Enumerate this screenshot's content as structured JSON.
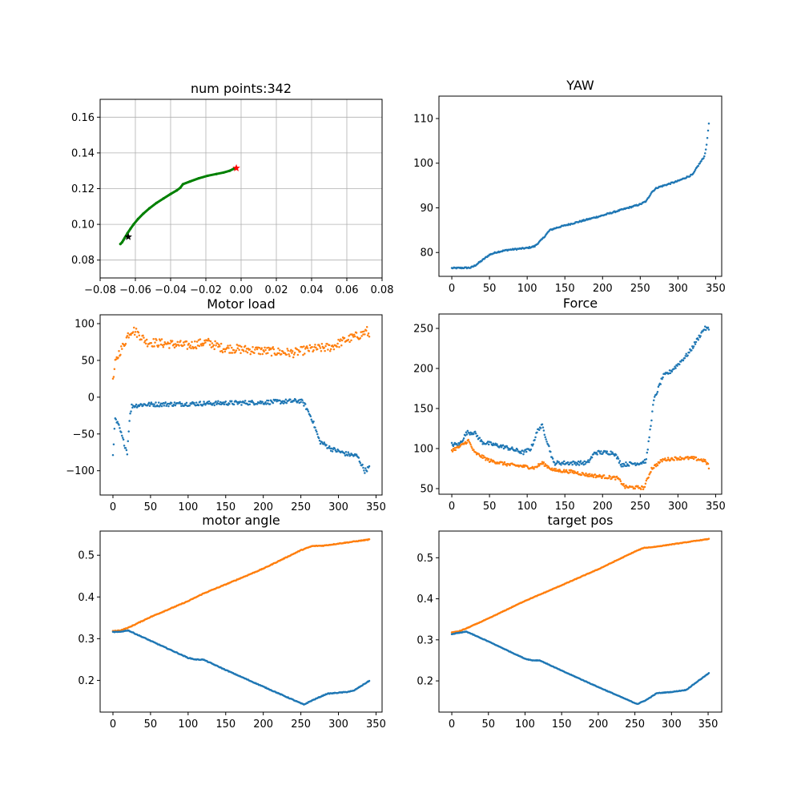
{
  "figure": {
    "background": "#ffffff"
  },
  "colors": {
    "blue": "#1f77b4",
    "orange": "#ff7f0e",
    "green": "#008000",
    "red": "#ff0000",
    "black": "#000000",
    "grid": "#b0b0b0"
  },
  "chart_data": [
    {
      "id": "trajectory",
      "type": "scatter",
      "title": "num points:342",
      "xlabel": "",
      "ylabel": "",
      "xlim": [
        -0.08,
        0.08
      ],
      "ylim": [
        0.07,
        0.17
      ],
      "xticks": [
        -0.08,
        -0.06,
        -0.04,
        -0.02,
        0.0,
        0.02,
        0.04,
        0.06,
        0.08
      ],
      "xtick_labels": [
        "−0.08",
        "−0.06",
        "−0.04",
        "−0.02",
        "0.00",
        "0.02",
        "0.04",
        "0.06",
        "0.08"
      ],
      "yticks": [
        0.08,
        0.1,
        0.12,
        0.14,
        0.16
      ],
      "ytick_labels": [
        "0.08",
        "0.10",
        "0.12",
        "0.14",
        "0.16"
      ],
      "grid": true,
      "path": {
        "color": "green",
        "points": [
          [
            -0.0685,
            0.089
          ],
          [
            -0.0675,
            0.09
          ],
          [
            -0.0668,
            0.0912
          ],
          [
            -0.066,
            0.0925
          ],
          [
            -0.0645,
            0.095
          ],
          [
            -0.0628,
            0.0975
          ],
          [
            -0.061,
            0.1
          ],
          [
            -0.0585,
            0.103
          ],
          [
            -0.0555,
            0.106
          ],
          [
            -0.052,
            0.109
          ],
          [
            -0.048,
            0.112
          ],
          [
            -0.044,
            0.1145
          ],
          [
            -0.04,
            0.117
          ],
          [
            -0.0365,
            0.119
          ],
          [
            -0.0345,
            0.1205
          ],
          [
            -0.033,
            0.1225
          ],
          [
            -0.029,
            0.124
          ],
          [
            -0.024,
            0.1258
          ],
          [
            -0.019,
            0.1272
          ],
          [
            -0.014,
            0.1282
          ],
          [
            -0.01,
            0.129
          ],
          [
            -0.0065,
            0.13
          ],
          [
            -0.004,
            0.1312
          ],
          [
            -0.003,
            0.1315
          ]
        ]
      },
      "markers": [
        {
          "name": "start",
          "x": -0.064,
          "y": 0.093,
          "color": "black",
          "shape": "star"
        },
        {
          "name": "end",
          "x": -0.0027,
          "y": 0.1315,
          "color": "red",
          "shape": "star"
        }
      ]
    },
    {
      "id": "yaw",
      "type": "scatter",
      "title": "YAW",
      "xlabel": "",
      "ylabel": "",
      "xlim": [
        -17.05,
        358.05
      ],
      "ylim": [
        74.66,
        115.02
      ],
      "xticks": [
        0,
        50,
        100,
        150,
        200,
        250,
        300,
        350
      ],
      "yticks": [
        80,
        90,
        100,
        110
      ],
      "grid": false,
      "series": [
        {
          "color": "blue",
          "count": 342,
          "noise": 0.15,
          "knots": [
            [
              0,
              76.5
            ],
            [
              25,
              76.6
            ],
            [
              30,
              77.0
            ],
            [
              40,
              78.2
            ],
            [
              50,
              79.5
            ],
            [
              60,
              80.1
            ],
            [
              75,
              80.6
            ],
            [
              100,
              81.0
            ],
            [
              110,
              81.4
            ],
            [
              120,
              83.0
            ],
            [
              130,
              85.0
            ],
            [
              140,
              85.6
            ],
            [
              160,
              86.5
            ],
            [
              200,
              88.3
            ],
            [
              230,
              89.8
            ],
            [
              250,
              90.8
            ],
            [
              258,
              91.5
            ],
            [
              265,
              93.5
            ],
            [
              272,
              94.5
            ],
            [
              300,
              96.0
            ],
            [
              320,
              97.5
            ],
            [
              325,
              99.0
            ],
            [
              335,
              101.5
            ],
            [
              338,
              104.0
            ],
            [
              341,
              109.0
            ],
            [
              342,
              113.2
            ]
          ]
        }
      ]
    },
    {
      "id": "motor_load",
      "type": "scatter",
      "title": "Motor load",
      "xlabel": "",
      "ylabel": "",
      "xlim": [
        -17.05,
        358.05
      ],
      "ylim": [
        -133,
        112
      ],
      "xticks": [
        0,
        50,
        100,
        150,
        200,
        250,
        300,
        350
      ],
      "yticks": [
        -100,
        -50,
        0,
        50,
        100
      ],
      "grid": false,
      "series": [
        {
          "color": "orange",
          "count": 342,
          "noise": 6,
          "knots": [
            [
              0,
              20
            ],
            [
              3,
              45
            ],
            [
              8,
              60
            ],
            [
              14,
              70
            ],
            [
              20,
              85
            ],
            [
              26,
              92
            ],
            [
              35,
              85
            ],
            [
              45,
              75
            ],
            [
              80,
              72
            ],
            [
              100,
              70
            ],
            [
              125,
              75
            ],
            [
              145,
              67
            ],
            [
              200,
              63
            ],
            [
              240,
              60
            ],
            [
              260,
              65
            ],
            [
              290,
              68
            ],
            [
              310,
              78
            ],
            [
              330,
              85
            ],
            [
              338,
              90
            ],
            [
              342,
              80
            ]
          ]
        },
        {
          "color": "blue",
          "count": 342,
          "noise": 3,
          "knots": [
            [
              0,
              -77
            ],
            [
              3,
              -30
            ],
            [
              8,
              -40
            ],
            [
              14,
              -60
            ],
            [
              19,
              -75
            ],
            [
              22,
              -30
            ],
            [
              25,
              -12
            ],
            [
              40,
              -10
            ],
            [
              100,
              -9
            ],
            [
              150,
              -8
            ],
            [
              200,
              -7
            ],
            [
              250,
              -5
            ],
            [
              255,
              -10
            ],
            [
              265,
              -30
            ],
            [
              275,
              -60
            ],
            [
              290,
              -70
            ],
            [
              310,
              -77
            ],
            [
              325,
              -80
            ],
            [
              335,
              -100
            ],
            [
              342,
              -95
            ]
          ]
        }
      ]
    },
    {
      "id": "force",
      "type": "scatter",
      "title": "Force",
      "xlabel": "",
      "ylabel": "",
      "xlim": [
        -17.05,
        358.05
      ],
      "ylim": [
        43,
        268
      ],
      "xticks": [
        0,
        50,
        100,
        150,
        200,
        250,
        300,
        350
      ],
      "yticks": [
        50,
        100,
        150,
        200,
        250
      ],
      "grid": false,
      "series": [
        {
          "color": "blue",
          "count": 342,
          "noise": 2.5,
          "knots": [
            [
              0,
              105
            ],
            [
              10,
              105
            ],
            [
              20,
              120
            ],
            [
              30,
              120
            ],
            [
              40,
              108
            ],
            [
              70,
              102
            ],
            [
              95,
              95
            ],
            [
              105,
              100
            ],
            [
              115,
              125
            ],
            [
              120,
              128
            ],
            [
              128,
              105
            ],
            [
              135,
              82
            ],
            [
              180,
              82
            ],
            [
              190,
              95
            ],
            [
              215,
              95
            ],
            [
              225,
              80
            ],
            [
              250,
              82
            ],
            [
              258,
              85
            ],
            [
              268,
              160
            ],
            [
              280,
              190
            ],
            [
              290,
              196
            ],
            [
              300,
              205
            ],
            [
              315,
              220
            ],
            [
              325,
              235
            ],
            [
              335,
              250
            ],
            [
              342,
              249
            ]
          ]
        },
        {
          "color": "orange",
          "count": 342,
          "noise": 2,
          "knots": [
            [
              0,
              98
            ],
            [
              10,
              102
            ],
            [
              22,
              110
            ],
            [
              30,
              95
            ],
            [
              50,
              85
            ],
            [
              75,
              80
            ],
            [
              110,
              76
            ],
            [
              120,
              82
            ],
            [
              135,
              73
            ],
            [
              160,
              71
            ],
            [
              180,
              67
            ],
            [
              220,
              63
            ],
            [
              230,
              52
            ],
            [
              255,
              51
            ],
            [
              265,
              75
            ],
            [
              280,
              86
            ],
            [
              300,
              88
            ],
            [
              320,
              88
            ],
            [
              335,
              85
            ],
            [
              340,
              80
            ],
            [
              342,
              72
            ]
          ]
        }
      ]
    },
    {
      "id": "motor_angle",
      "type": "scatter",
      "title": "motor angle",
      "xlabel": "",
      "ylabel": "",
      "xlim": [
        -17.05,
        358.05
      ],
      "ylim": [
        0.124,
        0.558
      ],
      "xticks": [
        0,
        50,
        100,
        150,
        200,
        250,
        300,
        350
      ],
      "yticks": [
        0.2,
        0.3,
        0.4,
        0.5
      ],
      "grid": false,
      "series": [
        {
          "color": "orange",
          "count": 342,
          "noise": 0.0008,
          "knots": [
            [
              0,
              0.318
            ],
            [
              10,
              0.32
            ],
            [
              20,
              0.326
            ],
            [
              50,
              0.352
            ],
            [
              100,
              0.39
            ],
            [
              120,
              0.408
            ],
            [
              150,
              0.43
            ],
            [
              200,
              0.468
            ],
            [
              250,
              0.512
            ],
            [
              265,
              0.522
            ],
            [
              280,
              0.523
            ],
            [
              342,
              0.538
            ]
          ]
        },
        {
          "color": "blue",
          "count": 342,
          "noise": 0.0008,
          "knots": [
            [
              0,
              0.316
            ],
            [
              8,
              0.316
            ],
            [
              20,
              0.32
            ],
            [
              50,
              0.295
            ],
            [
              100,
              0.254
            ],
            [
              110,
              0.25
            ],
            [
              120,
              0.25
            ],
            [
              150,
              0.225
            ],
            [
              200,
              0.185
            ],
            [
              254,
              0.142
            ],
            [
              265,
              0.152
            ],
            [
              285,
              0.168
            ],
            [
              310,
              0.172
            ],
            [
              320,
              0.175
            ],
            [
              335,
              0.192
            ],
            [
              342,
              0.2
            ]
          ]
        }
      ]
    },
    {
      "id": "target_pos",
      "type": "scatter",
      "title": "target pos",
      "xlabel": "",
      "ylabel": "",
      "xlim": [
        -17.55,
        368.55
      ],
      "ylim": [
        0.124,
        0.565
      ],
      "xticks": [
        0,
        50,
        100,
        150,
        200,
        250,
        300,
        350
      ],
      "yticks": [
        0.2,
        0.3,
        0.4,
        0.5
      ],
      "grid": false,
      "series": [
        {
          "color": "orange",
          "count": 352,
          "noise": 0.0006,
          "knots": [
            [
              0,
              0.318
            ],
            [
              10,
              0.321
            ],
            [
              20,
              0.328
            ],
            [
              50,
              0.352
            ],
            [
              100,
              0.395
            ],
            [
              120,
              0.41
            ],
            [
              150,
              0.433
            ],
            [
              200,
              0.472
            ],
            [
              250,
              0.515
            ],
            [
              262,
              0.524
            ],
            [
              275,
              0.526
            ],
            [
              352,
              0.546
            ]
          ]
        },
        {
          "color": "blue",
          "count": 352,
          "noise": 0.0006,
          "knots": [
            [
              0,
              0.314
            ],
            [
              20,
              0.32
            ],
            [
              50,
              0.296
            ],
            [
              100,
              0.254
            ],
            [
              110,
              0.25
            ],
            [
              120,
              0.25
            ],
            [
              150,
              0.225
            ],
            [
              200,
              0.185
            ],
            [
              250,
              0.146
            ],
            [
              254,
              0.144
            ],
            [
              265,
              0.153
            ],
            [
              280,
              0.17
            ],
            [
              300,
              0.173
            ],
            [
              320,
              0.178
            ],
            [
              335,
              0.198
            ],
            [
              352,
              0.22
            ]
          ]
        }
      ]
    }
  ]
}
